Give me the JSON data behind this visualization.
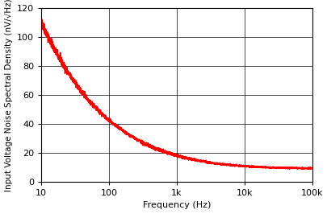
{
  "title": "",
  "xlabel": "Frequency (Hz)",
  "ylabel": "Input Voltage Noise Spectral Density (nV/√Hz)",
  "line_color": "#ff0000",
  "line_width": 1.2,
  "xlim": [
    10,
    100000
  ],
  "ylim": [
    0,
    120
  ],
  "yticks": [
    0,
    20,
    40,
    60,
    80,
    100,
    120
  ],
  "xtick_labels": [
    "10",
    "100",
    "1k",
    "10k",
    "100k"
  ],
  "xtick_values": [
    10,
    100,
    1000,
    10000,
    100000
  ],
  "background_color": "#ffffff",
  "noise_floor": 9.0,
  "noise_A": 350.0,
  "noise_alpha": 0.72,
  "scatter_scale": 1.8,
  "font_size_labels": 8,
  "font_size_ylabel": 7.5
}
